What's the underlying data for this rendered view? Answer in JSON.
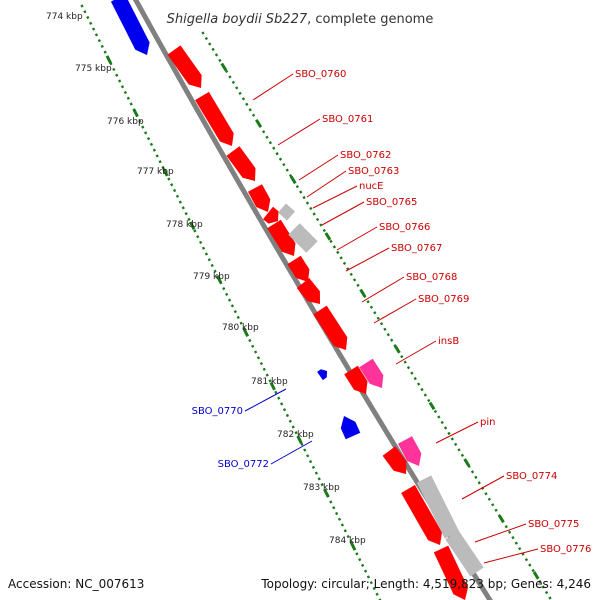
{
  "title": {
    "organism": "Shigella boydii Sb227",
    "suffix": ", complete genome"
  },
  "footer": {
    "accession_label": "Accession:",
    "accession": "NC_007613",
    "topology_label": "Topology:",
    "topology": "circular",
    "length_label": "Length:",
    "length": "4,519,823 bp",
    "genes_label": "Genes:",
    "genes": "4,246"
  },
  "colors": {
    "forward_gene": "#ff0000",
    "reverse_gene": "#0000ee",
    "pseudo_gene": "#bbbbbb",
    "mobile_element": "#ff3399",
    "backbone": "#808080",
    "tick_mark": "#1a7a1a",
    "forward_label": "#cc0000",
    "reverse_label": "#0000cc"
  },
  "tick_labels": [
    "774 kbp",
    "775 kbp",
    "776 kbp",
    "777 kbp",
    "778 kbp",
    "779 kbp",
    "780 kbp",
    "781 kbp",
    "782 kbp",
    "783 kbp",
    "784 kbp"
  ],
  "forward_labels": [
    "SBO_0760",
    "SBO_0761",
    "SBO_0762",
    "SBO_0763",
    "nucE",
    "SBO_0765",
    "SBO_0766",
    "SBO_0767",
    "SBO_0768",
    "SBO_0769",
    "insB",
    "pin",
    "SBO_0774",
    "SBO_0775",
    "SBO_0776"
  ],
  "reverse_labels": [
    "SBO_0770",
    "SBO_0772"
  ]
}
